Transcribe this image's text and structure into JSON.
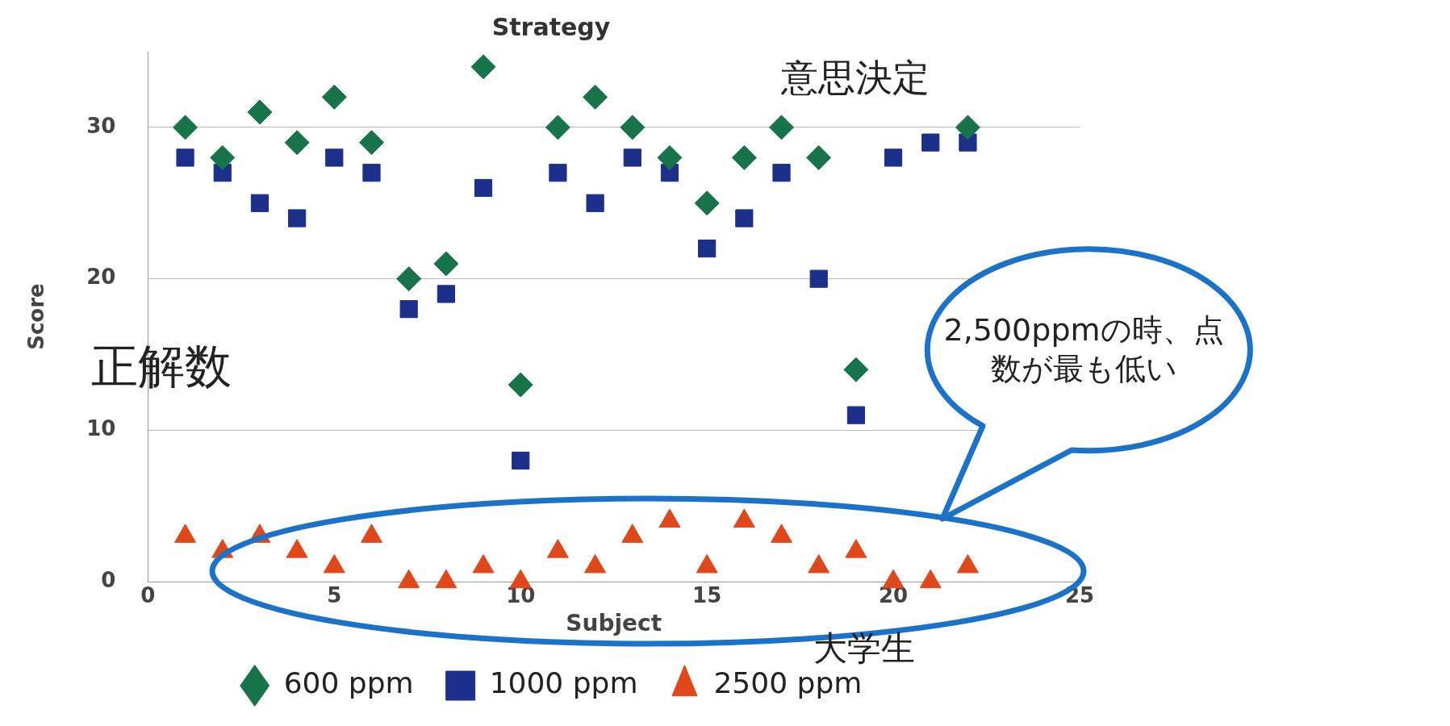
{
  "chart_data": {
    "type": "scatter",
    "title": "Strategy",
    "xlabel": "Subject",
    "ylabel": "Score",
    "x": [
      1,
      2,
      3,
      4,
      5,
      6,
      7,
      8,
      9,
      10,
      11,
      12,
      13,
      14,
      15,
      16,
      17,
      18,
      19,
      20,
      21,
      22
    ],
    "series": [
      {
        "name": "600 ppm",
        "color": "#17744a",
        "marker": "diamond",
        "values": [
          30,
          28,
          31,
          29,
          32,
          29,
          20,
          21,
          34,
          13,
          30,
          32,
          30,
          28,
          25,
          28,
          30,
          28,
          14,
          null,
          null,
          30
        ]
      },
      {
        "name": "1000 ppm",
        "color": "#1c2f8a",
        "marker": "square",
        "values": [
          28,
          27,
          25,
          24,
          28,
          27,
          18,
          19,
          26,
          8,
          27,
          25,
          28,
          27,
          22,
          24,
          27,
          20,
          11,
          28,
          29,
          29
        ]
      },
      {
        "name": "2500 ppm",
        "color": "#e0481c",
        "marker": "triangle",
        "values": [
          3,
          2,
          3,
          2,
          1,
          3,
          0,
          0,
          1,
          0,
          2,
          1,
          3,
          4,
          1,
          4,
          3,
          1,
          2,
          0,
          0,
          1
        ]
      }
    ],
    "xlim": [
      0,
      25
    ],
    "xticks": [
      0,
      5,
      10,
      15,
      20,
      25
    ],
    "ylim": [
      0,
      35
    ],
    "yticks": [
      0,
      10,
      20,
      30
    ],
    "grid": "y",
    "legend": "bottom",
    "annotations": [
      "意思決定",
      "正解数",
      "2,500ppmの時、点数が最も低い",
      "大学生"
    ]
  }
}
